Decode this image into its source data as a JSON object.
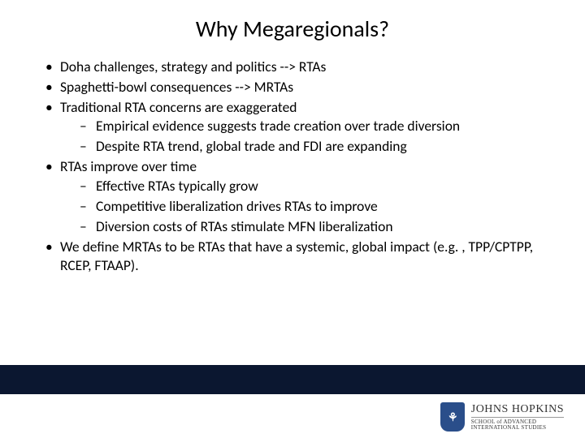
{
  "slide": {
    "title": "Why Megaregionals?",
    "title_fontsize": 28,
    "title_color": "#000000",
    "body_fontsize": 17.5,
    "body_color": "#000000",
    "background_color": "#ffffff",
    "bullets": [
      {
        "text": "Doha challenges, strategy and politics --> RTAs"
      },
      {
        "text": "Spaghetti-bowl consequences --> MRTAs"
      },
      {
        "text": "Traditional RTA concerns are exaggerated",
        "sub": [
          "Empirical evidence suggests trade creation over trade diversion",
          "Despite RTA trend, global trade and FDI are expanding"
        ]
      },
      {
        "text": "RTAs improve over time",
        "sub": [
          "Effective RTAs typically grow",
          "Competitive liberalization drives RTAs to improve",
          "Diversion costs of RTAs stimulate MFN liberalization"
        ]
      },
      {
        "text": "We define MRTAs to be RTAs that have a systemic, global impact (e.g. , TPP/CPTPP, RCEP, FTAAP)."
      }
    ]
  },
  "footer": {
    "bar_color": "#0b1730",
    "logo_main": "JOHNS HOPKINS",
    "logo_sub_line1": "SCHOOL of ADVANCED",
    "logo_sub_line2": "INTERNATIONAL STUDIES",
    "shield_color": "#2a4e8a",
    "shield_text": "⚘"
  }
}
